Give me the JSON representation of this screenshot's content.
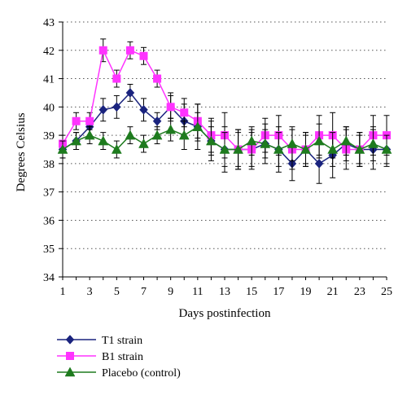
{
  "chart_data": {
    "type": "line",
    "title": "",
    "xlabel": "Days postinfection",
    "ylabel": "Degrees Celsius",
    "x": [
      1,
      2,
      3,
      4,
      5,
      6,
      7,
      8,
      9,
      10,
      11,
      12,
      13,
      14,
      15,
      16,
      17,
      18,
      19,
      20,
      21,
      22,
      23,
      24,
      25
    ],
    "x_tick_labels": [
      "1",
      "3",
      "5",
      "7",
      "9",
      "11",
      "13",
      "15",
      "17",
      "19",
      "21",
      "23",
      "25"
    ],
    "x_tick_values": [
      1,
      3,
      5,
      7,
      9,
      11,
      13,
      15,
      17,
      19,
      21,
      23,
      25
    ],
    "y_tick_labels": [
      "34",
      "35",
      "36",
      "37",
      "38",
      "39",
      "40",
      "41",
      "42",
      "43"
    ],
    "ylim": [
      34,
      43
    ],
    "xlim": [
      1,
      25
    ],
    "grid": "horizontal dotted",
    "legend_position": "bottom",
    "series": [
      {
        "name": "T1 strain",
        "color": "#1a237e",
        "marker": "diamond",
        "values": [
          38.5,
          38.8,
          39.3,
          39.9,
          40.0,
          40.5,
          39.9,
          39.5,
          40.0,
          39.5,
          39.3,
          38.8,
          38.5,
          38.5,
          38.5,
          38.7,
          38.5,
          38.0,
          38.5,
          38.0,
          38.3,
          38.7,
          38.5,
          38.5,
          38.5
        ],
        "errors": [
          0.3,
          0.3,
          0.3,
          0.4,
          0.4,
          0.3,
          0.4,
          0.3,
          0.5,
          0.6,
          0.8,
          0.7,
          0.8,
          0.7,
          0.6,
          0.7,
          0.8,
          0.6,
          0.6,
          0.7,
          0.8,
          0.6,
          0.6,
          0.7,
          0.6
        ]
      },
      {
        "name": "B1 strain",
        "color": "#ff33ff",
        "marker": "square",
        "values": [
          38.7,
          39.5,
          39.5,
          42.0,
          41.0,
          42.0,
          41.8,
          41.0,
          40.0,
          39.8,
          39.5,
          39.0,
          39.0,
          38.5,
          38.5,
          39.0,
          39.0,
          38.5,
          38.5,
          39.0,
          39.0,
          38.5,
          38.5,
          39.0,
          39.0
        ],
        "errors": [
          0.3,
          0.3,
          0.3,
          0.4,
          0.3,
          0.3,
          0.3,
          0.3,
          0.4,
          0.5,
          0.6,
          0.6,
          0.8,
          0.7,
          0.7,
          0.6,
          0.7,
          0.7,
          0.6,
          0.7,
          0.8,
          0.7,
          0.6,
          0.7,
          0.7
        ]
      },
      {
        "name": "Placebo (control)",
        "color": "#1e7b1e",
        "marker": "triangle",
        "values": [
          38.5,
          38.8,
          39.0,
          38.8,
          38.5,
          39.0,
          38.7,
          39.0,
          39.2,
          39.0,
          39.3,
          38.8,
          38.5,
          38.5,
          38.8,
          38.7,
          38.5,
          38.7,
          38.5,
          38.8,
          38.5,
          38.8,
          38.5,
          38.7,
          38.5
        ],
        "errors": [
          0.3,
          0.3,
          0.3,
          0.3,
          0.3,
          0.3,
          0.3,
          0.3,
          0.4,
          0.5,
          0.5,
          0.5,
          0.6,
          0.6,
          0.5,
          0.5,
          0.6,
          0.6,
          0.5,
          0.6,
          0.6,
          0.5,
          0.5,
          0.6,
          0.5
        ]
      }
    ]
  }
}
